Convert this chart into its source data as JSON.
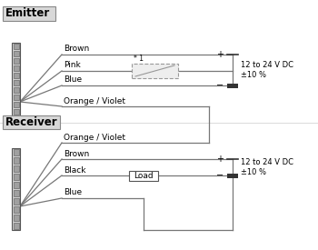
{
  "bg": "#ffffff",
  "emitter_label": "Emitter",
  "receiver_label": "Receiver",
  "voltage_label": "12 to 24 V DC\n±10 %",
  "load_label": "Load",
  "switch_label": "* 1",
  "wire_color": "#777777",
  "wire_lw": 0.9,
  "conn_face": "#d0d0d0",
  "conn_edge": "#555555",
  "conn_sq_face": "#a0a0a0",
  "label_box_face": "#d8d8d8",
  "label_box_edge": "#888888",
  "bat_face": "#333333",
  "switch_face": "#eeeeee",
  "switch_edge": "#999999"
}
